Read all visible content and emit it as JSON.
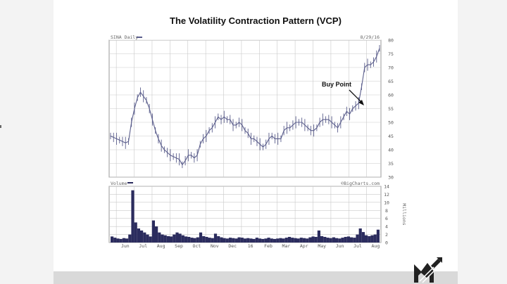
{
  "slide": {
    "title": "The Volatility Contraction Pattern (VCP)"
  },
  "colors": {
    "price": "#5b5e8c",
    "volume": "#2b2c5e",
    "grid": "#c9c9c9",
    "frame": "#999999",
    "footer": "#d9d9d9"
  },
  "icons": {
    "logo": "stylized-M-logo-icon",
    "arrow": "annotation-arrow-icon"
  },
  "chart_data": [
    {
      "type": "line",
      "panel": "price",
      "header_left": "SINA Daily",
      "header_right": "8/29/16",
      "ylim": [
        30,
        80
      ],
      "y_ticks": [
        30,
        35,
        40,
        45,
        50,
        55,
        60,
        65,
        70,
        75,
        80
      ],
      "x_tick_labels": [
        "Jun",
        "Jul",
        "Aug",
        "Sep",
        "Oct",
        "Nov",
        "Dec",
        "16",
        "Feb",
        "Mar",
        "Apr",
        "May",
        "Jun",
        "Jul",
        "Aug"
      ],
      "series": [
        {
          "values": [
            45,
            44.5,
            44,
            43.5,
            43,
            42.5,
            43,
            50,
            55,
            59,
            61,
            59.5,
            58,
            55,
            51,
            47,
            44,
            41.5,
            40,
            39,
            38,
            37.5,
            37,
            36.5,
            34.5,
            36,
            38,
            38,
            37,
            38,
            42,
            44,
            45,
            47,
            48,
            50,
            52,
            51,
            52,
            51,
            51,
            49,
            49,
            50,
            49,
            47,
            46,
            44,
            44,
            43,
            42,
            41,
            42,
            44,
            45,
            44,
            44,
            44,
            47,
            48,
            48,
            49,
            50,
            50,
            50,
            49,
            48,
            47,
            47,
            48,
            50,
            51,
            51,
            51,
            50,
            49,
            48,
            50,
            52,
            54,
            53,
            55,
            56,
            57,
            63,
            70,
            71,
            71,
            72,
            74,
            77
          ]
        }
      ],
      "annotations": [
        {
          "text": "Buy Point"
        }
      ]
    },
    {
      "type": "bar",
      "panel": "volume",
      "header_left": "Volume",
      "header_right": "©BigCharts.com",
      "ylabel": "Millions",
      "ylim": [
        0,
        14
      ],
      "y_ticks": [
        0,
        2,
        4,
        6,
        8,
        10,
        12,
        14
      ],
      "values": [
        1.5,
        1.2,
        1.0,
        0.9,
        1.1,
        1.0,
        2.0,
        13.0,
        5.0,
        3.5,
        3.0,
        2.5,
        2.0,
        1.5,
        5.5,
        4.0,
        2.5,
        2.0,
        1.8,
        1.6,
        1.5,
        2.0,
        2.5,
        2.2,
        1.8,
        1.5,
        1.4,
        1.2,
        1.1,
        1.3,
        2.5,
        1.6,
        1.4,
        1.2,
        1.1,
        2.2,
        1.6,
        1.3,
        1.1,
        1.0,
        1.2,
        1.1,
        1.0,
        1.3,
        1.2,
        1.0,
        1.1,
        1.0,
        0.9,
        1.2,
        1.0,
        0.9,
        1.0,
        1.2,
        1.0,
        0.9,
        1.0,
        1.1,
        1.0,
        1.2,
        1.4,
        1.2,
        1.1,
        1.0,
        1.2,
        1.1,
        1.0,
        1.3,
        1.5,
        1.4,
        3.0,
        1.6,
        1.4,
        1.2,
        1.1,
        1.3,
        1.1,
        1.0,
        1.2,
        1.4,
        1.5,
        1.3,
        1.2,
        2.0,
        3.5,
        2.6,
        1.8,
        1.6,
        1.8,
        2.0,
        3.2
      ]
    }
  ]
}
